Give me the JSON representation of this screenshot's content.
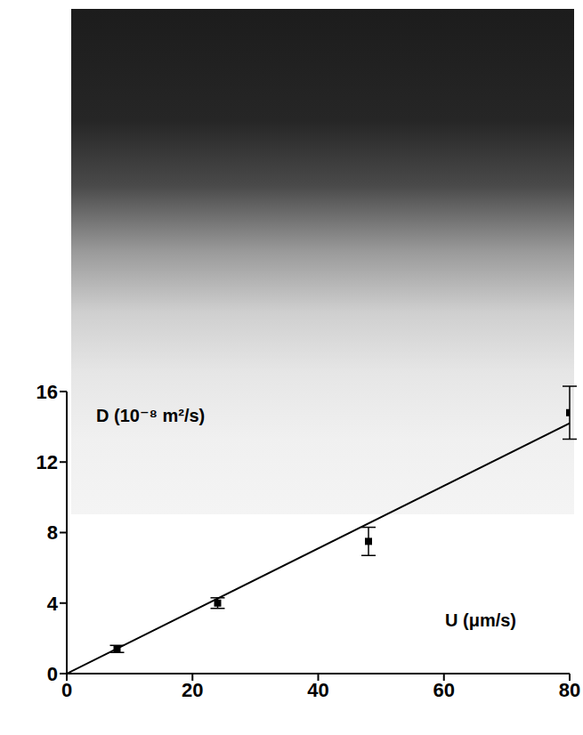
{
  "chart_data": {
    "type": "scatter",
    "x_label": "U (μm/s)",
    "y_label": "D (10⁻⁸ m²/s)",
    "x": [
      8,
      24,
      48,
      80
    ],
    "values": [
      1.4,
      4.0,
      7.5,
      14.8
    ],
    "errors": [
      0.2,
      0.3,
      0.8,
      1.5
    ],
    "color": "#000000",
    "marker": "square",
    "fit_line": {
      "x": [
        0,
        80
      ],
      "values": [
        0,
        14.2
      ]
    },
    "xlim": [
      0,
      80
    ],
    "ylim": [
      0,
      16
    ],
    "xticks": [
      0,
      20,
      40,
      60,
      80
    ],
    "yticks": [
      0,
      4,
      8,
      12,
      16
    ],
    "grid": false
  }
}
